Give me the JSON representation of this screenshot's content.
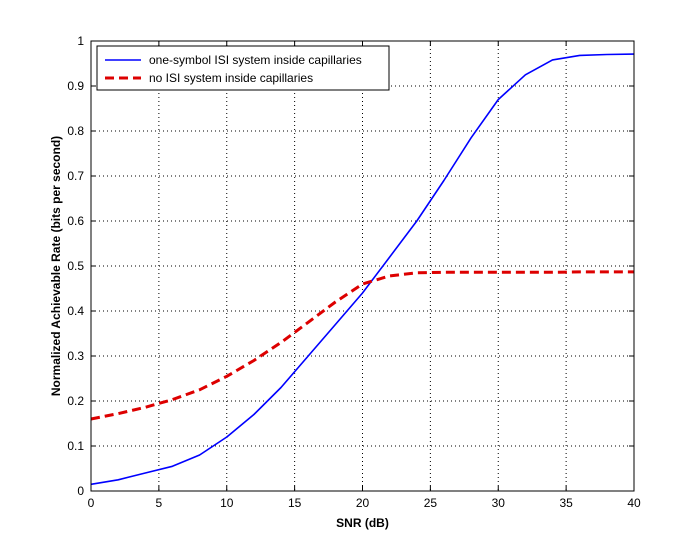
{
  "chart_data": {
    "type": "line",
    "title": "",
    "xlabel": "SNR (dB)",
    "ylabel": "Normalized Achievable Rate (bits per second)",
    "xlim": [
      0,
      40
    ],
    "ylim": [
      0,
      1
    ],
    "xticks": [
      0,
      5,
      10,
      15,
      20,
      25,
      30,
      35,
      40
    ],
    "yticks": [
      0,
      0.1,
      0.2,
      0.3,
      0.4,
      0.5,
      0.6,
      0.7,
      0.8,
      0.9,
      1
    ],
    "grid": true,
    "legend_position": "top-left",
    "series": [
      {
        "name": "one-symbol ISI system inside capillaries",
        "color": "#0000ff",
        "line_style": "solid",
        "x": [
          0,
          2,
          4,
          6,
          8,
          10,
          12,
          14,
          16,
          18,
          20,
          22,
          24,
          26,
          28,
          30,
          32,
          34,
          36,
          38,
          40
        ],
        "y": [
          0.015,
          0.025,
          0.04,
          0.055,
          0.08,
          0.12,
          0.17,
          0.23,
          0.3,
          0.37,
          0.44,
          0.52,
          0.6,
          0.69,
          0.785,
          0.87,
          0.925,
          0.958,
          0.968,
          0.97,
          0.971
        ]
      },
      {
        "name": "no ISI system inside capillaries",
        "color": "#dd0000",
        "line_style": "dashed",
        "x": [
          0,
          2,
          4,
          6,
          8,
          10,
          12,
          14,
          16,
          18,
          20,
          22,
          24,
          26,
          28,
          30,
          32,
          34,
          36,
          38,
          40
        ],
        "y": [
          0.16,
          0.172,
          0.186,
          0.203,
          0.225,
          0.255,
          0.29,
          0.33,
          0.375,
          0.42,
          0.46,
          0.478,
          0.485,
          0.486,
          0.486,
          0.486,
          0.486,
          0.486,
          0.487,
          0.487,
          0.487
        ]
      }
    ]
  }
}
